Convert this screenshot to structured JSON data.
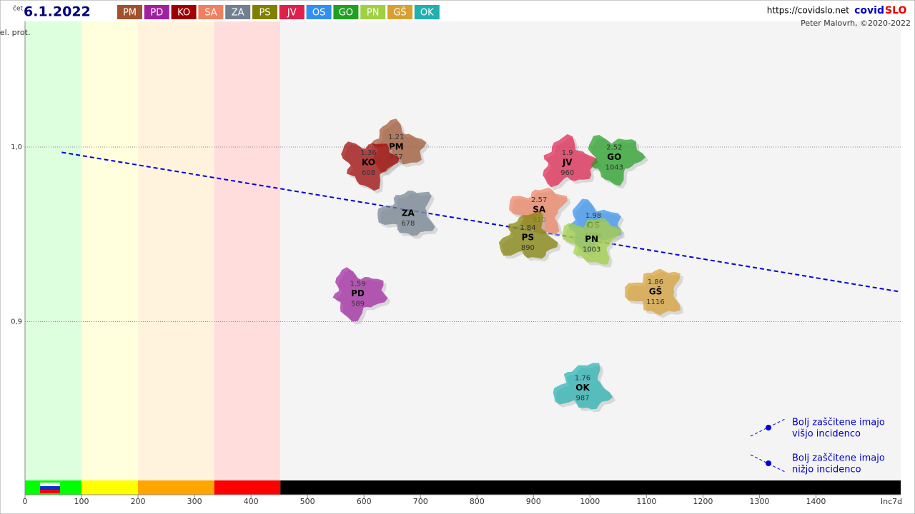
{
  "chart_data": {
    "type": "scatter",
    "weekday": "čet",
    "date": "6.1.2022",
    "url": "https://covidslo.net",
    "brand": "covid",
    "brand_accent": "SLO",
    "author": "Peter Malovrh, ©2020-2022",
    "y_label": "rel. prot.",
    "x_label": "Inc7d",
    "xlim": [
      0,
      1550
    ],
    "ylim": [
      0.809,
      1.072
    ],
    "xticks": [
      0,
      100,
      200,
      300,
      400,
      500,
      600,
      700,
      800,
      900,
      1000,
      1100,
      1200,
      1300,
      1400
    ],
    "yticks": [
      {
        "value": 1.0,
        "label": "1,0"
      },
      {
        "value": 0.9,
        "label": "0,9"
      }
    ],
    "zones": [
      {
        "from": 0,
        "to": 100,
        "color": "#00ff00"
      },
      {
        "from": 100,
        "to": 200,
        "color": "#ffff00"
      },
      {
        "from": 200,
        "to": 335,
        "color": "#ffa500"
      },
      {
        "from": 335,
        "to": 452,
        "color": "#ff0000"
      },
      {
        "from": 452,
        "to": 1550,
        "color": "#000000"
      }
    ],
    "trend": {
      "x": [
        65,
        1569
      ],
      "y": [
        0.997,
        0.916
      ],
      "color": "#0000dd"
    },
    "series": [
      {
        "name": "PM",
        "color": "#a0522d",
        "x": [
          657
        ],
        "values": [
          1.0
        ],
        "growth": 1.21
      },
      {
        "name": "PD",
        "color": "#a020a0",
        "x": [
          589
        ],
        "values": [
          0.916
        ],
        "growth": 1.59
      },
      {
        "name": "KO",
        "color": "#a00000",
        "x": [
          608
        ],
        "values": [
          0.991
        ],
        "growth": 1.36
      },
      {
        "name": "SA",
        "color": "#f08060",
        "x": [
          910
        ],
        "values": [
          0.964
        ],
        "growth": 2.57
      },
      {
        "name": "ZA",
        "color": "#708090",
        "x": [
          678
        ],
        "values": [
          0.962
        ]
      },
      {
        "name": "PS",
        "color": "#808000",
        "x": [
          890
        ],
        "values": [
          0.948
        ],
        "growth": 1.84
      },
      {
        "name": "JV",
        "color": "#e0204c",
        "x": [
          960
        ],
        "values": [
          0.991
        ],
        "growth": 1.9
      },
      {
        "name": "OS",
        "color": "#3090f0",
        "x": [
          1006
        ],
        "values": [
          0.955
        ],
        "growth": 1.98
      },
      {
        "name": "GO",
        "color": "#20a020",
        "x": [
          1043
        ],
        "values": [
          0.994
        ],
        "growth": 2.52
      },
      {
        "name": "PN",
        "color": "#a0d040",
        "x": [
          1003
        ],
        "values": [
          0.947
        ]
      },
      {
        "name": "GŠ",
        "color": "#d8a030",
        "x": [
          1116
        ],
        "values": [
          0.917
        ],
        "growth": 1.86
      },
      {
        "name": "OK",
        "color": "#20b0b0",
        "x": [
          987
        ],
        "values": [
          0.862
        ],
        "growth": 1.76
      }
    ],
    "annotations": [
      {
        "line1": "Bolj  zaščitene imajo",
        "line2": "višjo incidenco"
      },
      {
        "line1": "Bolj  zaščitene imajo",
        "line2": "nižjo incidenco"
      }
    ]
  }
}
